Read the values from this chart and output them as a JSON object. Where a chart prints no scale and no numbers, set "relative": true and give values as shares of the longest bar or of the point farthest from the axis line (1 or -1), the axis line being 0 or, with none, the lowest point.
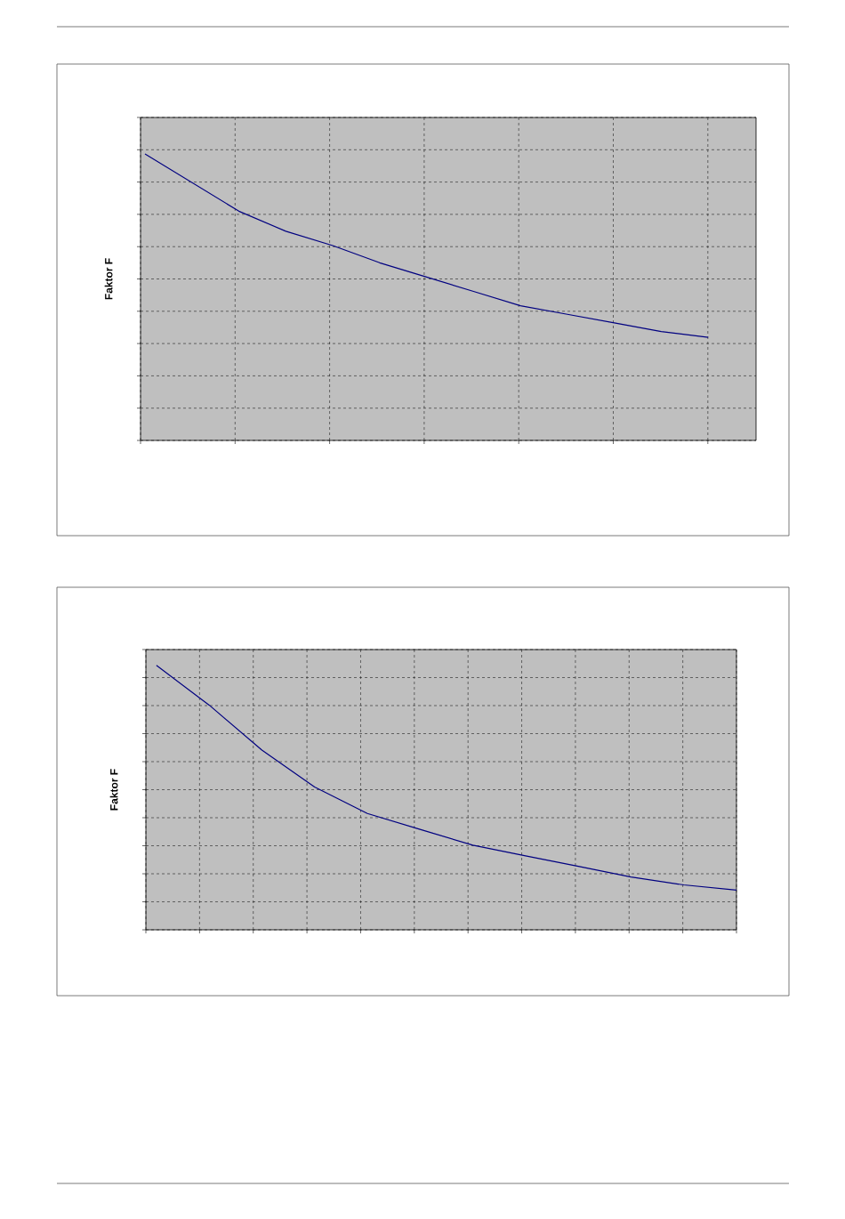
{
  "chart_data": [
    {
      "type": "line",
      "ylabel": "Faktor F",
      "relative": true,
      "categories": [
        null,
        null,
        null,
        null,
        null,
        null,
        null,
        null,
        null,
        null,
        null,
        null,
        null
      ],
      "series": [
        {
          "color": "#000080",
          "values": [
            1,
            0.9,
            0.8,
            0.73,
            0.68,
            0.62,
            0.57,
            0.52,
            0.47,
            0.44,
            0.41,
            0.38,
            0.36
          ]
        }
      ],
      "grid": true,
      "tick_labels": false,
      "marker": "none",
      "line_style": "solid"
    },
    {
      "type": "line",
      "ylabel": "Faktor F",
      "relative": true,
      "categories": [
        null,
        null,
        null,
        null,
        null,
        null,
        null,
        null,
        null,
        null,
        null,
        null
      ],
      "series": [
        {
          "color": "#000080",
          "values": [
            1,
            0.85,
            0.68,
            0.54,
            0.44,
            0.38,
            0.32,
            0.28,
            0.24,
            0.2,
            0.17,
            0.15
          ]
        }
      ],
      "grid": true,
      "tick_labels": false,
      "marker": "none",
      "line_style": "solid"
    }
  ]
}
